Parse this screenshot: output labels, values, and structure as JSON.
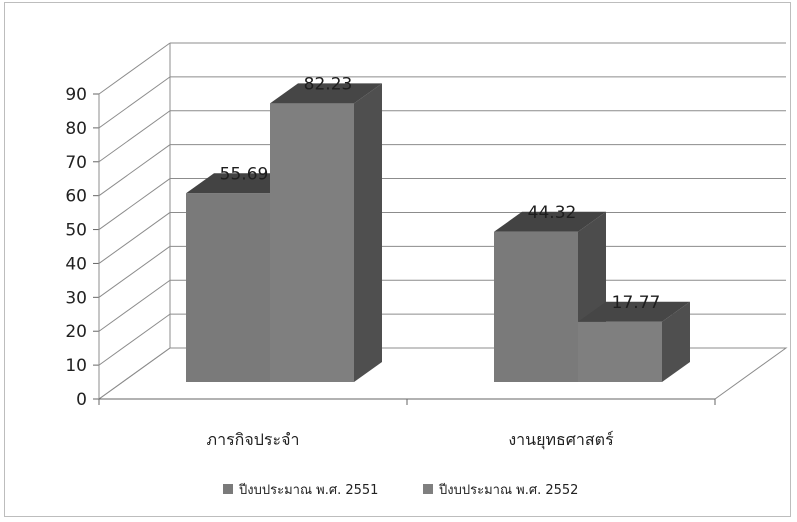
{
  "chart_data": {
    "type": "bar",
    "style": "3d-clustered-column",
    "categories": [
      "ภารกิจประจำ",
      "งานยุทธศาสตร์"
    ],
    "series": [
      {
        "name": "ปีงบประมาณ พ.ศ. 2551",
        "values": [
          55.69,
          44.32
        ],
        "color": "#7a7a7a"
      },
      {
        "name": "ปีงบประมาณ พ.ศ. 2552",
        "values": [
          82.23,
          17.77
        ],
        "color": "#7f7f7f"
      }
    ],
    "data_labels": [
      "55.69",
      "44.32",
      "82.23",
      "17.77"
    ],
    "ylim": [
      0,
      90
    ],
    "yticks": [
      0,
      10,
      20,
      30,
      40,
      50,
      60,
      70,
      80,
      90
    ],
    "grid": true,
    "legend_position": "bottom"
  }
}
